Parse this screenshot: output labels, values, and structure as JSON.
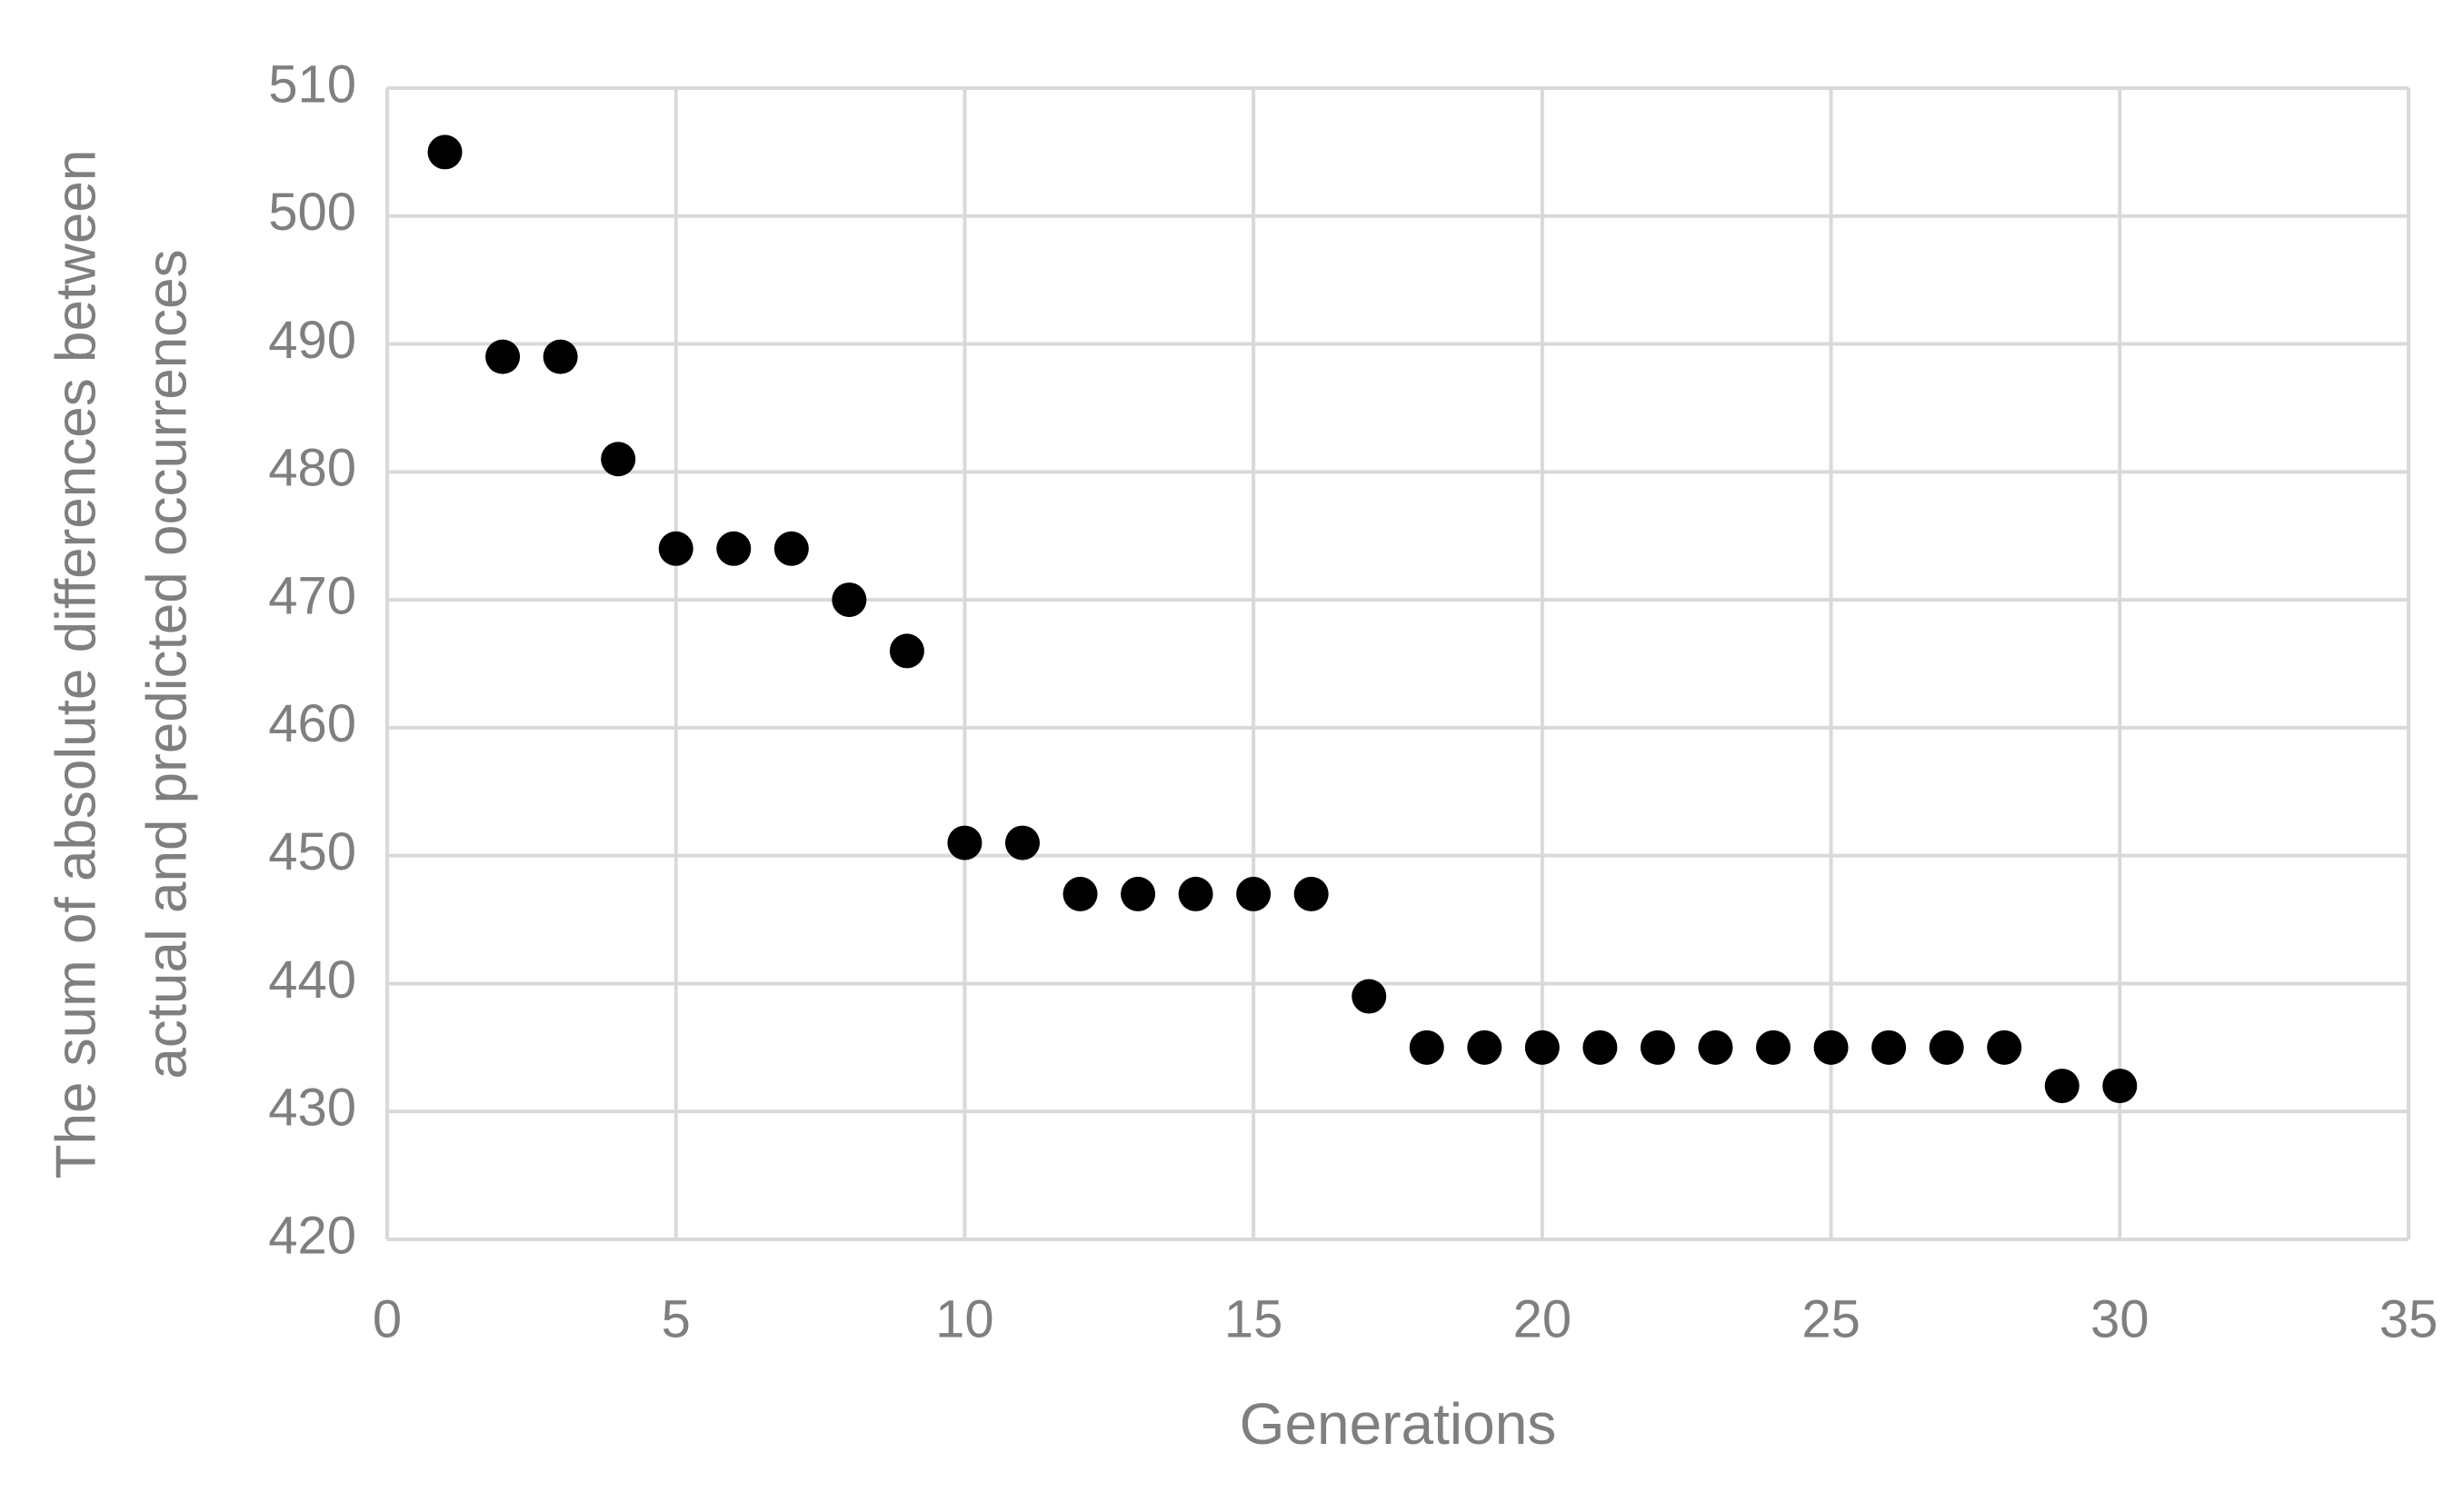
{
  "chart_data": {
    "type": "scatter",
    "xlabel": "Generations",
    "ylabel": [
      "The sum of absolute differences between",
      "actual and predicted occurrences"
    ],
    "x": [
      1,
      2,
      3,
      4,
      5,
      6,
      7,
      8,
      9,
      10,
      11,
      12,
      13,
      14,
      15,
      16,
      17,
      18,
      19,
      20,
      21,
      22,
      23,
      24,
      25,
      26,
      27,
      28,
      29,
      30
    ],
    "values": [
      505,
      489,
      489,
      481,
      474,
      474,
      474,
      470,
      466,
      451,
      451,
      447,
      447,
      447,
      447,
      447,
      439,
      435,
      435,
      435,
      435,
      435,
      435,
      435,
      435,
      435,
      435,
      435,
      432,
      432
    ],
    "color": "#000000",
    "xlim": [
      0,
      35
    ],
    "xticks": [
      0,
      5,
      10,
      15,
      20,
      25,
      30,
      35
    ],
    "ylim": [
      420,
      510
    ],
    "yticks": [
      420,
      430,
      440,
      450,
      460,
      470,
      480,
      490,
      500,
      510
    ],
    "grid": true
  }
}
